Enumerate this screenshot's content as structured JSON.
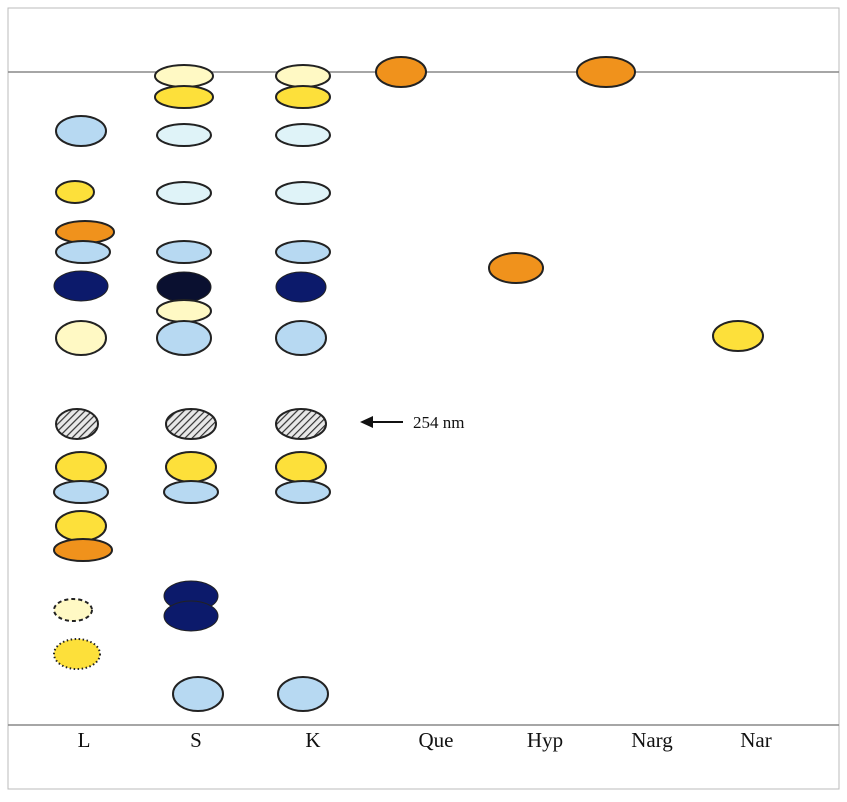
{
  "lanes": [
    {
      "id": "L",
      "label": "L"
    },
    {
      "id": "S",
      "label": "S"
    },
    {
      "id": "K",
      "label": "K"
    },
    {
      "id": "Que",
      "label": "Que"
    },
    {
      "id": "Hyp",
      "label": "Hyp"
    },
    {
      "id": "Narg",
      "label": "Narg"
    },
    {
      "id": "Nar",
      "label": "Nar"
    }
  ],
  "annotation": {
    "text": "254 nm"
  },
  "colors": {
    "orange": "#f0921c",
    "yellow": "#fde03a",
    "pale_yellow": "#fff9c4",
    "light_blue": "#b7d9f2",
    "pale_cyan": "#dff3f8",
    "navy": "#0c1a6b",
    "black_navy": "#0a1030",
    "hatch": "#555555",
    "outline": "#222222",
    "line": "#888888"
  },
  "spots": [
    {
      "lane": "L",
      "color": "light_blue",
      "style": "solid"
    },
    {
      "lane": "L",
      "color": "yellow",
      "style": "solid"
    },
    {
      "lane": "L",
      "color": "orange",
      "style": "solid"
    },
    {
      "lane": "L",
      "color": "light_blue",
      "style": "solid"
    },
    {
      "lane": "L",
      "color": "navy",
      "style": "solid"
    },
    {
      "lane": "L",
      "color": "pale_yellow",
      "style": "solid"
    },
    {
      "lane": "L",
      "color": "hatch",
      "style": "hatched"
    },
    {
      "lane": "L",
      "color": "yellow",
      "style": "solid"
    },
    {
      "lane": "L",
      "color": "light_blue",
      "style": "solid"
    },
    {
      "lane": "L",
      "color": "yellow",
      "style": "solid"
    },
    {
      "lane": "L",
      "color": "orange",
      "style": "solid"
    },
    {
      "lane": "L",
      "color": "pale_yellow",
      "style": "dashed"
    },
    {
      "lane": "L",
      "color": "yellow",
      "style": "dotted"
    },
    {
      "lane": "S",
      "color": "pale_yellow",
      "style": "solid"
    },
    {
      "lane": "S",
      "color": "yellow",
      "style": "solid"
    },
    {
      "lane": "S",
      "color": "pale_cyan",
      "style": "solid"
    },
    {
      "lane": "S",
      "color": "pale_cyan",
      "style": "solid"
    },
    {
      "lane": "S",
      "color": "light_blue",
      "style": "solid"
    },
    {
      "lane": "S",
      "color": "black_navy",
      "style": "solid"
    },
    {
      "lane": "S",
      "color": "pale_yellow",
      "style": "solid"
    },
    {
      "lane": "S",
      "color": "light_blue",
      "style": "solid"
    },
    {
      "lane": "S",
      "color": "hatch",
      "style": "hatched"
    },
    {
      "lane": "S",
      "color": "yellow",
      "style": "solid"
    },
    {
      "lane": "S",
      "color": "light_blue",
      "style": "solid"
    },
    {
      "lane": "S",
      "color": "navy",
      "style": "solid"
    },
    {
      "lane": "S",
      "color": "navy",
      "style": "solid"
    },
    {
      "lane": "S",
      "color": "light_blue",
      "style": "solid"
    },
    {
      "lane": "K",
      "color": "pale_yellow",
      "style": "solid"
    },
    {
      "lane": "K",
      "color": "yellow",
      "style": "solid"
    },
    {
      "lane": "K",
      "color": "pale_cyan",
      "style": "solid"
    },
    {
      "lane": "K",
      "color": "pale_cyan",
      "style": "solid"
    },
    {
      "lane": "K",
      "color": "light_blue",
      "style": "solid"
    },
    {
      "lane": "K",
      "color": "navy",
      "style": "solid"
    },
    {
      "lane": "K",
      "color": "light_blue",
      "style": "solid"
    },
    {
      "lane": "K",
      "color": "hatch",
      "style": "hatched"
    },
    {
      "lane": "K",
      "color": "yellow",
      "style": "solid"
    },
    {
      "lane": "K",
      "color": "light_blue",
      "style": "solid"
    },
    {
      "lane": "K",
      "color": "light_blue",
      "style": "solid"
    },
    {
      "lane": "Que",
      "color": "orange",
      "style": "solid"
    },
    {
      "lane": "Hyp",
      "color": "orange",
      "style": "solid"
    },
    {
      "lane": "Narg",
      "color": "orange",
      "style": "solid"
    },
    {
      "lane": "Nar",
      "color": "yellow",
      "style": "solid"
    }
  ]
}
